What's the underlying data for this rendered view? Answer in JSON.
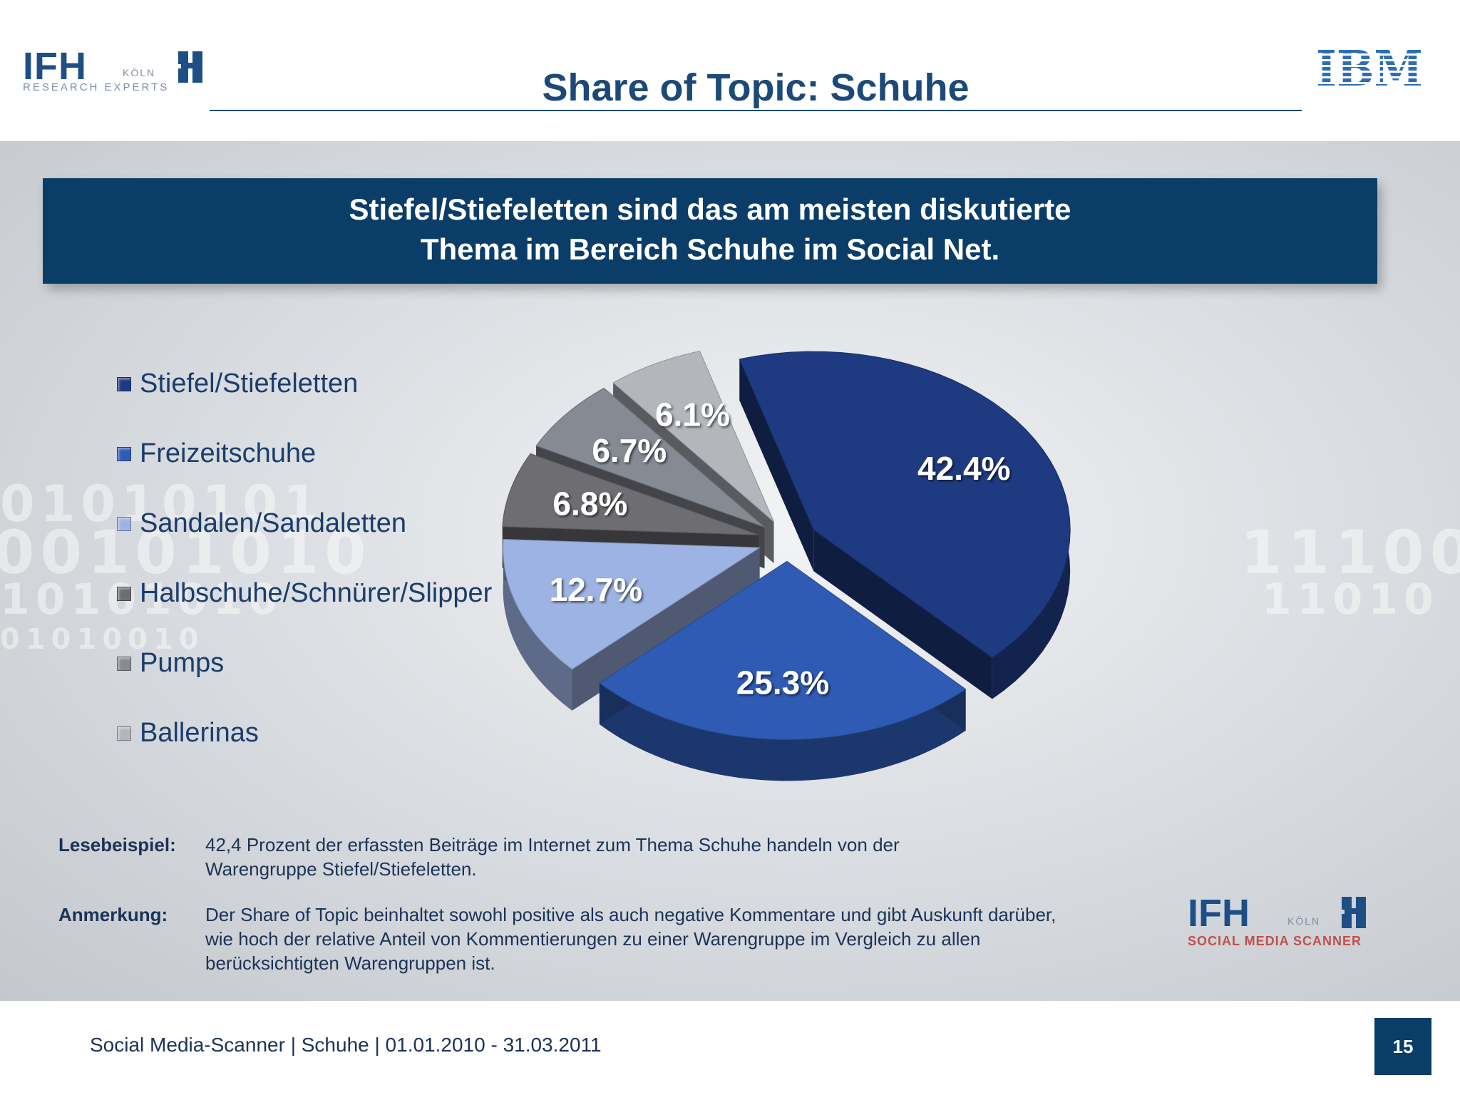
{
  "header": {
    "title": "Share of Topic: Schuhe",
    "left_logo": {
      "main": "IFH",
      "city": "KÖLN",
      "tagline": "RESEARCH EXPERTS"
    },
    "right_logo": {
      "text": "IBM"
    }
  },
  "banner": {
    "line1": "Stiefel/Stiefeletten sind das am meisten diskutierte",
    "line2": "Thema im Bereich Schuhe im Social Net."
  },
  "background": {
    "digits": [
      "01010101",
      "00101010",
      "10101010",
      "01010010",
      "11100",
      "11010"
    ]
  },
  "chart_data": {
    "type": "pie",
    "title": "",
    "slices": [
      {
        "label": "Stiefel/Stiefeletten",
        "value": 42.4,
        "value_label": "42.4%",
        "color": "#1e3a80"
      },
      {
        "label": "Freizeitschuhe",
        "value": 25.3,
        "value_label": "25.3%",
        "color": "#2f5bb5"
      },
      {
        "label": "Sandalen/Sandaletten",
        "value": 12.7,
        "value_label": "12.7%",
        "color": "#9db3e3"
      },
      {
        "label": "Halbschuhe/Schnürer/Slipper",
        "value": 6.8,
        "value_label": "6.8%",
        "color": "#6e6e72"
      },
      {
        "label": "Pumps",
        "value": 6.7,
        "value_label": "6.7%",
        "color": "#858a93"
      },
      {
        "label": "Ballerinas",
        "value": 6.1,
        "value_label": "6.1%",
        "color": "#b3b6bb"
      }
    ],
    "legend_position": "left",
    "style": "3d-exploded"
  },
  "notes": {
    "reading_example": {
      "label": "Lesebeispiel",
      "lines": [
        "42,4 Prozent der erfassten Beiträge im Internet zum Thema Schuhe handeln von der",
        "Warengruppe Stiefel/Stiefeletten."
      ]
    },
    "remark": {
      "label": "Anmerkung",
      "lines": [
        "Der Share of Topic beinhaltet sowohl positive als auch negative Kommentare und gibt Auskunft darüber,",
        "wie hoch der relative Anteil von Kommentierungen zu einer Warengruppe im Vergleich zu allen",
        "berücksichtigten Warengruppen ist."
      ]
    }
  },
  "bottom_logo": {
    "main": "IFH",
    "city": "KÖLN",
    "tagline": "SOCIAL MEDIA SCANNER"
  },
  "footer": {
    "text": "Social Media-Scanner | Schuhe | 01.01.2010 - 31.03.2011",
    "page_number": "15"
  }
}
